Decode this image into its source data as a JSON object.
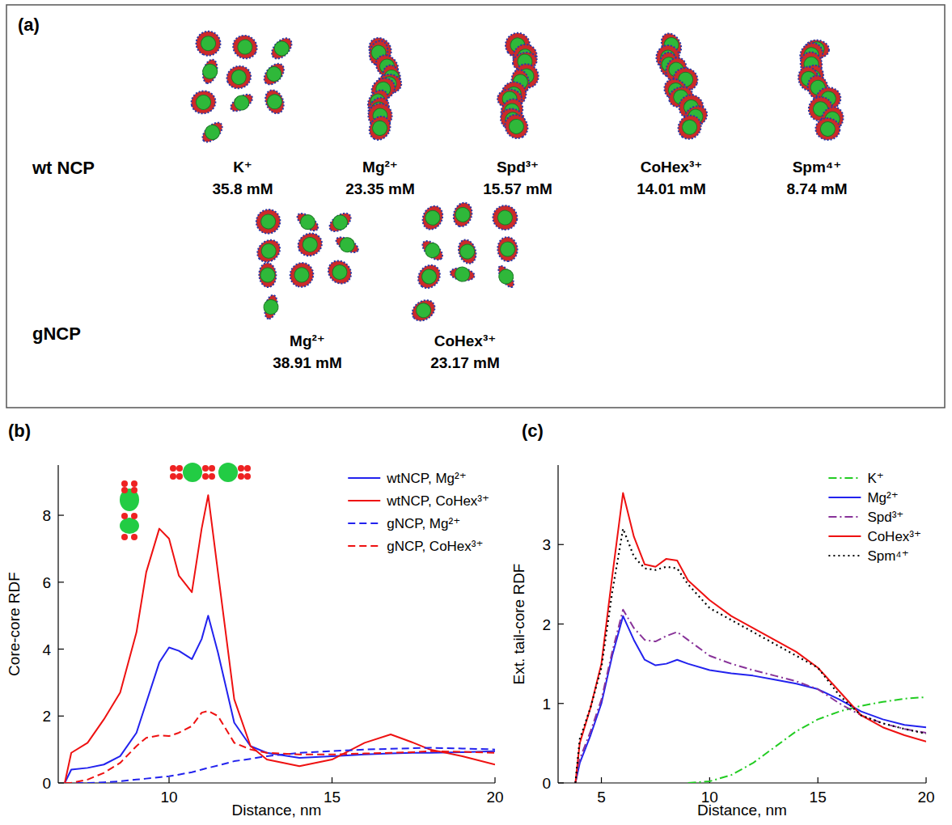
{
  "snapshots": {
    "panel": "(a)",
    "rows": [
      {
        "label": "wt NCP",
        "items": [
          {
            "ion": "K⁺",
            "concentration": "35.8 mM"
          },
          {
            "ion": "Mg²⁺",
            "concentration": "23.35 mM"
          },
          {
            "ion": "Spd³⁺",
            "concentration": "15.57 mM"
          },
          {
            "ion": "CoHex³⁺",
            "concentration": "14.01 mM"
          },
          {
            "ion": "Spm⁴⁺",
            "concentration": "8.74 mM"
          }
        ]
      },
      {
        "label": "gNCP",
        "items": [
          {
            "ion": "Mg²⁺",
            "concentration": "38.91 mM"
          },
          {
            "ion": "CoHex³⁺",
            "concentration": "23.17 mM"
          }
        ]
      }
    ]
  },
  "chart_data": [
    {
      "type": "line",
      "panel": "(b)",
      "x_label": "Distance, nm",
      "y_label": "Core-core RDF",
      "x": [
        6.8,
        7,
        7.5,
        8,
        8.5,
        9,
        9.3,
        9.7,
        10,
        10.3,
        10.7,
        11,
        11.2,
        11.5,
        12,
        12.5,
        13,
        14,
        15,
        16,
        16.8,
        17.5,
        18,
        19,
        20
      ],
      "series": [
        {
          "name": "wtNCP, Mg²⁺",
          "color": "#2222ee",
          "line_style": "solid",
          "values": [
            0,
            0.4,
            0.45,
            0.55,
            0.8,
            1.5,
            2.4,
            3.6,
            4.05,
            3.95,
            3.7,
            4.3,
            5.0,
            3.9,
            1.8,
            1.1,
            0.9,
            0.75,
            0.8,
            0.85,
            0.88,
            0.9,
            0.9,
            0.92,
            0.95
          ]
        },
        {
          "name": "wtNCP, CoHex³⁺",
          "color": "#ee1111",
          "line_style": "solid",
          "values": [
            0,
            0.9,
            1.2,
            1.9,
            2.7,
            4.5,
            6.3,
            7.6,
            7.3,
            6.2,
            5.7,
            7.6,
            8.6,
            6.3,
            2.5,
            1.1,
            0.7,
            0.5,
            0.7,
            1.2,
            1.45,
            1.2,
            1.0,
            0.8,
            0.55
          ]
        },
        {
          "name": "gNCP, Mg²⁺",
          "color": "#2222ee",
          "line_style": "dashed",
          "values": [
            0,
            0,
            0,
            0.02,
            0.05,
            0.1,
            0.13,
            0.17,
            0.2,
            0.25,
            0.32,
            0.4,
            0.45,
            0.52,
            0.65,
            0.72,
            0.8,
            0.9,
            0.95,
            1.0,
            1.02,
            1.04,
            1.05,
            1.03,
            1.0
          ]
        },
        {
          "name": "gNCP, CoHex³⁺",
          "color": "#ee1111",
          "line_style": "dashed",
          "values": [
            0,
            0,
            0.1,
            0.3,
            0.6,
            1.1,
            1.35,
            1.42,
            1.4,
            1.5,
            1.7,
            2.1,
            2.15,
            2.0,
            1.2,
            1.0,
            0.9,
            0.85,
            0.85,
            0.88,
            0.9,
            0.92,
            0.95,
            0.93,
            0.9
          ]
        }
      ],
      "xlim": [
        6.6,
        20
      ],
      "ylim": [
        0,
        9.5
      ],
      "xticks": [
        10,
        15,
        20
      ],
      "yticks": [
        0,
        2,
        4,
        6,
        8
      ],
      "legend": "upper right",
      "grid": false
    },
    {
      "type": "line",
      "panel": "(c)",
      "x_label": "Distance, nm",
      "y_label": "Ext. tail-core RDF",
      "x": [
        3.8,
        4,
        4.5,
        5,
        5.5,
        6,
        6.5,
        7,
        7.5,
        8,
        8.5,
        9,
        10,
        11,
        12,
        13,
        14,
        15,
        16,
        17,
        18,
        19,
        20
      ],
      "series": [
        {
          "name": "K⁺",
          "color": "#22cc22",
          "line_style": "dashdot",
          "values": [
            null,
            null,
            null,
            null,
            null,
            null,
            null,
            null,
            null,
            null,
            null,
            0,
            0.02,
            0.1,
            0.25,
            0.45,
            0.65,
            0.8,
            0.9,
            0.97,
            1.02,
            1.06,
            1.08
          ]
        },
        {
          "name": "Mg²⁺",
          "color": "#2222ee",
          "line_style": "solid",
          "values": [
            0,
            0.25,
            0.6,
            1.0,
            1.6,
            2.1,
            1.8,
            1.55,
            1.48,
            1.5,
            1.55,
            1.5,
            1.42,
            1.38,
            1.35,
            1.3,
            1.25,
            1.18,
            1.05,
            0.9,
            0.8,
            0.73,
            0.7
          ]
        },
        {
          "name": "Spd³⁺",
          "color": "#883399",
          "line_style": "dashdot",
          "values": [
            0,
            0.3,
            0.65,
            1.05,
            1.65,
            2.18,
            1.95,
            1.8,
            1.78,
            1.85,
            1.9,
            1.8,
            1.6,
            1.5,
            1.42,
            1.35,
            1.28,
            1.18,
            1.0,
            0.85,
            0.75,
            0.68,
            0.63
          ]
        },
        {
          "name": "CoHex³⁺",
          "color": "#ee1111",
          "line_style": "solid",
          "values": [
            0,
            0.5,
            0.95,
            1.5,
            2.6,
            3.65,
            3.1,
            2.75,
            2.72,
            2.82,
            2.8,
            2.55,
            2.3,
            2.1,
            1.95,
            1.8,
            1.65,
            1.45,
            1.15,
            0.85,
            0.7,
            0.6,
            0.52
          ]
        },
        {
          "name": "Spm⁴⁺",
          "color": "#000000",
          "line_style": "dotted",
          "values": [
            0,
            0.55,
            0.95,
            1.45,
            2.4,
            3.2,
            2.85,
            2.7,
            2.68,
            2.72,
            2.7,
            2.5,
            2.2,
            2.05,
            1.9,
            1.75,
            1.6,
            1.45,
            1.1,
            0.85,
            0.75,
            0.68,
            0.62
          ]
        }
      ],
      "xlim": [
        3,
        20
      ],
      "ylim": [
        0,
        4
      ],
      "xticks": [
        5,
        10,
        15,
        20
      ],
      "yticks": [
        0,
        1,
        2,
        3
      ],
      "legend": "upper right",
      "grid": false
    }
  ]
}
